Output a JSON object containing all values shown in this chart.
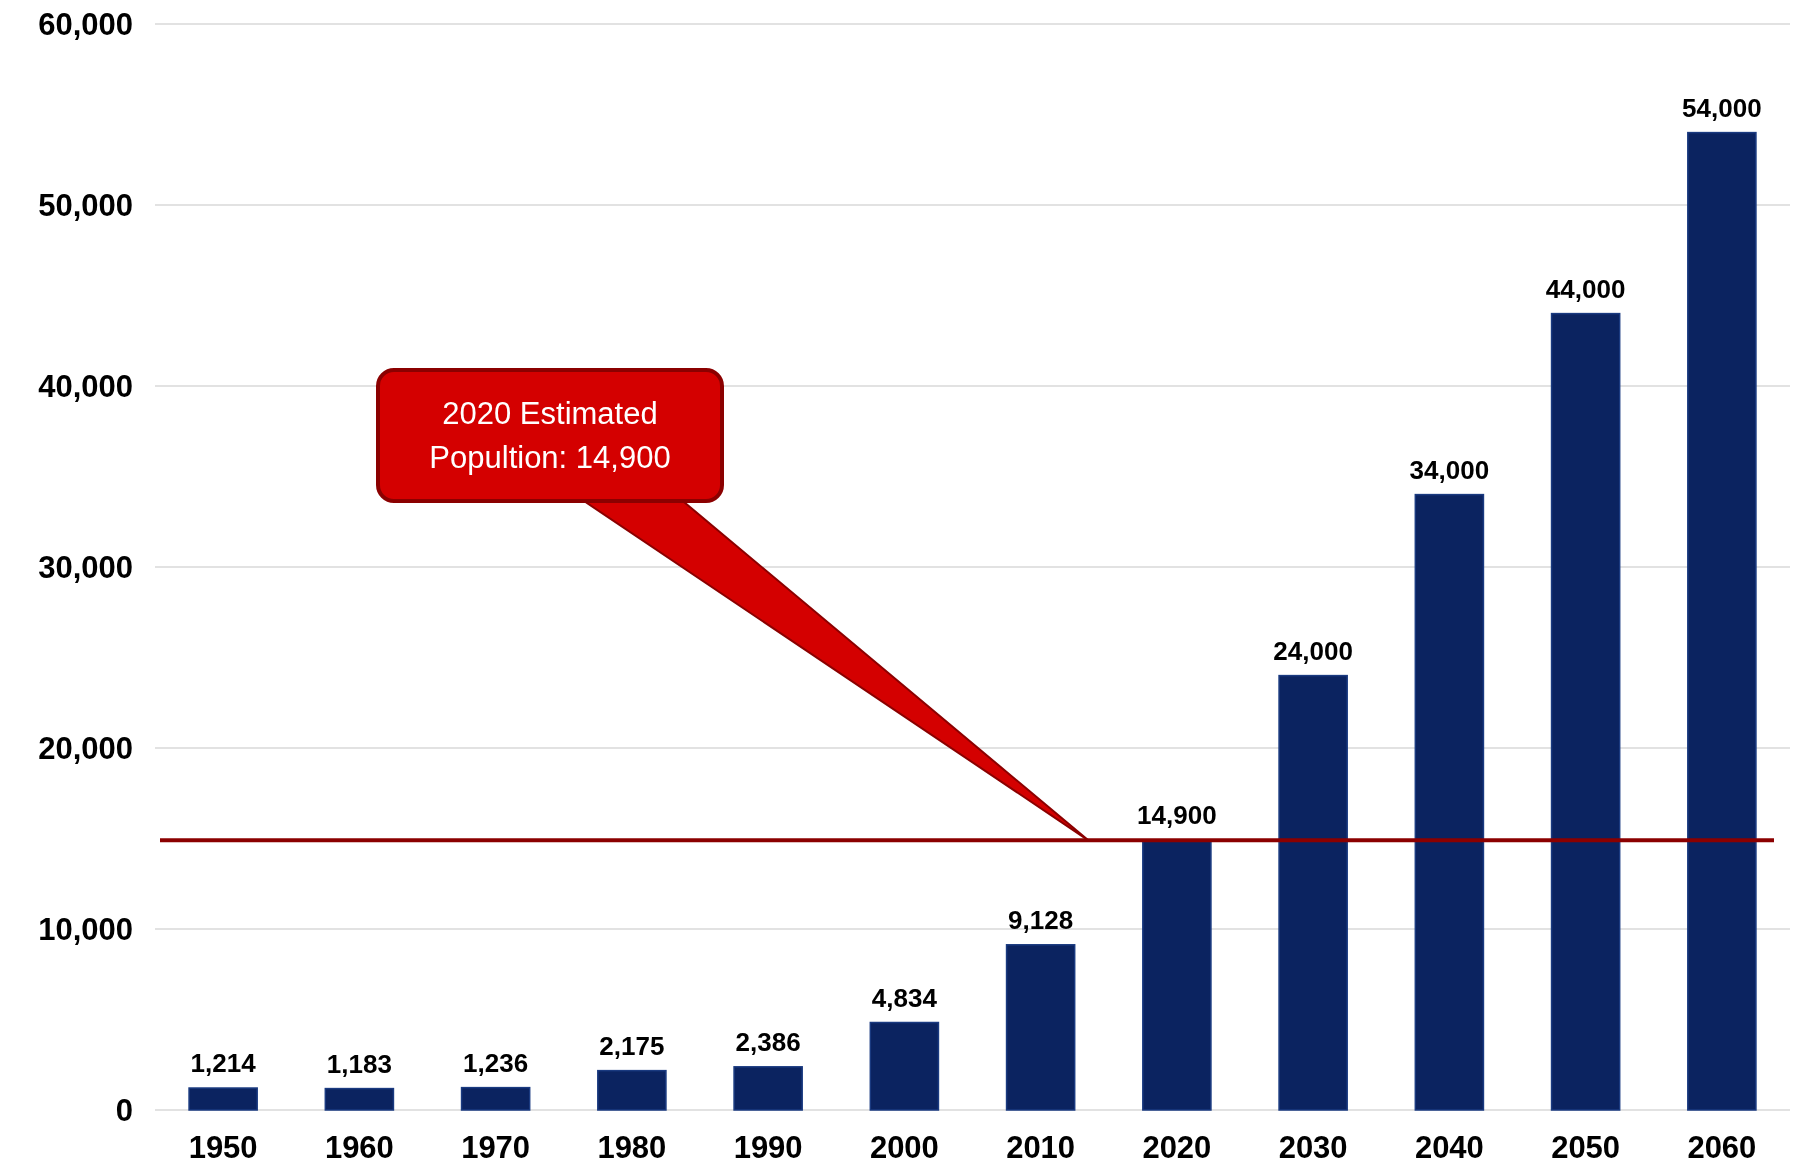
{
  "chart_data": {
    "type": "bar",
    "categories": [
      "1950",
      "1960",
      "1970",
      "1980",
      "1990",
      "2000",
      "2010",
      "2020",
      "2030",
      "2040",
      "2050",
      "2060"
    ],
    "values": [
      1214,
      1183,
      1236,
      2175,
      2386,
      4834,
      9128,
      14900,
      24000,
      34000,
      44000,
      54000
    ],
    "color": "#0b2360",
    "ylim": [
      0,
      60000
    ],
    "yticks": [
      {
        "value": 0,
        "label": "0"
      },
      {
        "value": 10000,
        "label": "10,000"
      },
      {
        "value": 20000,
        "label": "20,000"
      },
      {
        "value": 30000,
        "label": "30,000"
      },
      {
        "value": 40000,
        "label": "40,000"
      },
      {
        "value": 50000,
        "label": "50,000"
      },
      {
        "value": 60000,
        "label": "60,000"
      }
    ],
    "value_labels": [
      "1,214",
      "1,183",
      "1,236",
      "2,175",
      "2,386",
      "4,834",
      "9,128",
      "14,900",
      "24,000",
      "34,000",
      "44,000",
      "54,000"
    ],
    "grid": "y",
    "ref_lines": [
      {
        "axis": "y",
        "value": 14900,
        "color": "#8b0000"
      }
    ],
    "annotations": [
      "2020 Estimated Popultion: 14,900"
    ]
  }
}
